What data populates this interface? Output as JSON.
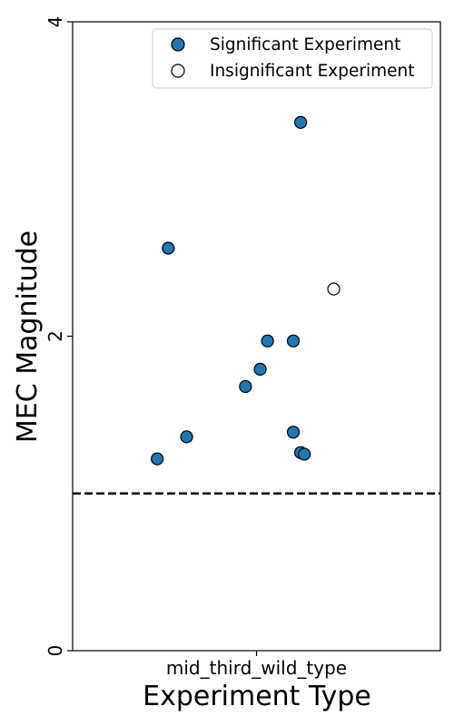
{
  "chart_data": {
    "type": "scatter",
    "xlabel": "Experiment Type",
    "ylabel": "MEC Magnitude",
    "categories": [
      "mid_third_wild_type"
    ],
    "ylim": [
      0,
      4
    ],
    "yticks": [
      "0",
      "2",
      "4"
    ],
    "reference_line": {
      "y": 1.0,
      "style": "dashed"
    },
    "legend": {
      "placement": "top-right",
      "entries": [
        {
          "label": "Significant Experiment",
          "fill": "#1f77b4"
        },
        {
          "label": "Insignificant Experiment",
          "fill": "#ffffff"
        }
      ]
    },
    "series": [
      {
        "name": "Significant Experiment",
        "color": "#1f77b4",
        "points": [
          {
            "x": 0.12,
            "y": 3.36
          },
          {
            "x": -0.24,
            "y": 2.56
          },
          {
            "x": 0.03,
            "y": 1.97
          },
          {
            "x": 0.1,
            "y": 1.97
          },
          {
            "x": 0.01,
            "y": 1.79
          },
          {
            "x": -0.03,
            "y": 1.68
          },
          {
            "x": 0.1,
            "y": 1.39
          },
          {
            "x": -0.19,
            "y": 1.36
          },
          {
            "x": 0.12,
            "y": 1.26
          },
          {
            "x": 0.13,
            "y": 1.25
          },
          {
            "x": -0.27,
            "y": 1.22
          }
        ]
      },
      {
        "name": "Insignificant Experiment",
        "color": "#ffffff",
        "points": [
          {
            "x": 0.21,
            "y": 2.3
          }
        ]
      }
    ]
  }
}
